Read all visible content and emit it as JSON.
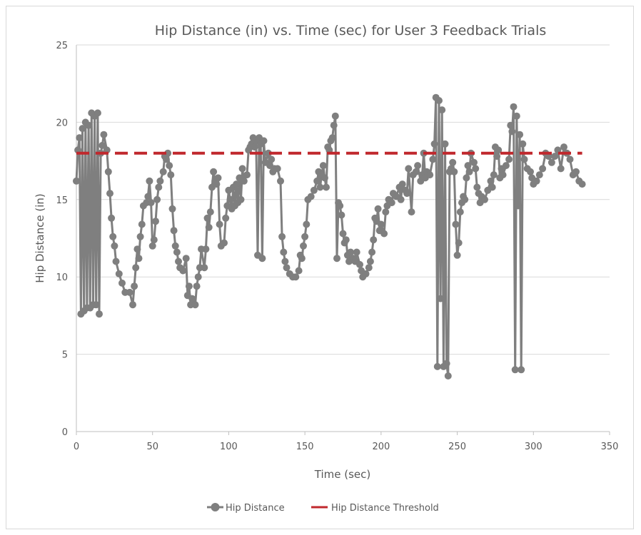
{
  "chart_data": {
    "type": "line",
    "title": "Hip Distance (in) vs. Time (sec) for User 3 Feedback Trials",
    "xlabel": "Time (sec)",
    "ylabel": "Hip Distance (in)",
    "xlim": [
      0,
      350
    ],
    "ylim": [
      0,
      25
    ],
    "x_ticks": [
      "0",
      "50",
      "100",
      "150",
      "200",
      "250",
      "300",
      "350"
    ],
    "y_ticks": [
      "0",
      "5",
      "10",
      "15",
      "20",
      "25"
    ],
    "grid": true,
    "legend_position": "bottom",
    "series": [
      {
        "name": "Hip Distance",
        "color": "#7f7f7f",
        "marker": "circle",
        "points": [
          [
            0,
            16.2
          ],
          [
            1,
            18.2
          ],
          [
            2,
            19.0
          ],
          [
            3,
            7.6
          ],
          [
            4,
            19.6
          ],
          [
            5,
            7.8
          ],
          [
            6,
            20.0
          ],
          [
            7,
            8.0
          ],
          [
            8,
            19.8
          ],
          [
            9,
            8.0
          ],
          [
            10,
            20.6
          ],
          [
            11,
            8.2
          ],
          [
            12,
            20.4
          ],
          [
            13,
            8.2
          ],
          [
            14,
            20.6
          ],
          [
            15,
            7.6
          ],
          [
            16,
            18.0
          ],
          [
            17,
            18.5
          ],
          [
            18,
            19.2
          ],
          [
            20,
            18.2
          ],
          [
            21,
            16.8
          ],
          [
            22,
            15.4
          ],
          [
            23,
            13.8
          ],
          [
            24,
            12.6
          ],
          [
            25,
            12.0
          ],
          [
            26,
            11.0
          ],
          [
            28,
            10.2
          ],
          [
            30,
            9.6
          ],
          [
            32,
            9.0
          ],
          [
            35,
            9.0
          ],
          [
            37,
            8.2
          ],
          [
            38,
            9.4
          ],
          [
            39,
            10.6
          ],
          [
            40,
            11.8
          ],
          [
            41,
            11.2
          ],
          [
            42,
            12.6
          ],
          [
            43,
            13.4
          ],
          [
            44,
            14.6
          ],
          [
            46,
            14.8
          ],
          [
            47,
            15.2
          ],
          [
            48,
            16.2
          ],
          [
            49,
            14.8
          ],
          [
            50,
            12.0
          ],
          [
            51,
            12.4
          ],
          [
            52,
            13.6
          ],
          [
            53,
            15.0
          ],
          [
            54,
            15.8
          ],
          [
            55,
            16.2
          ],
          [
            57,
            16.8
          ],
          [
            58,
            17.8
          ],
          [
            59,
            17.6
          ],
          [
            60,
            18.0
          ],
          [
            61,
            17.2
          ],
          [
            62,
            16.6
          ],
          [
            63,
            14.4
          ],
          [
            64,
            13.0
          ],
          [
            65,
            12.0
          ],
          [
            66,
            11.6
          ],
          [
            67,
            11.0
          ],
          [
            68,
            10.6
          ],
          [
            70,
            10.4
          ],
          [
            72,
            11.2
          ],
          [
            73,
            8.8
          ],
          [
            74,
            9.4
          ],
          [
            75,
            8.2
          ],
          [
            76,
            8.6
          ],
          [
            78,
            8.2
          ],
          [
            79,
            9.4
          ],
          [
            80,
            10.0
          ],
          [
            81,
            10.6
          ],
          [
            82,
            11.8
          ],
          [
            84,
            10.6
          ],
          [
            85,
            11.8
          ],
          [
            86,
            13.8
          ],
          [
            87,
            13.2
          ],
          [
            88,
            14.2
          ],
          [
            89,
            15.8
          ],
          [
            90,
            16.8
          ],
          [
            91,
            16.2
          ],
          [
            92,
            16.0
          ],
          [
            93,
            16.4
          ],
          [
            94,
            13.4
          ],
          [
            95,
            12.0
          ],
          [
            97,
            12.2
          ],
          [
            98,
            13.8
          ],
          [
            99,
            14.6
          ],
          [
            100,
            15.6
          ],
          [
            101,
            15.0
          ],
          [
            102,
            14.4
          ],
          [
            103,
            15.8
          ],
          [
            104,
            14.6
          ],
          [
            105,
            16.0
          ],
          [
            106,
            14.8
          ],
          [
            107,
            16.4
          ],
          [
            108,
            15.0
          ],
          [
            109,
            17.0
          ],
          [
            110,
            16.2
          ],
          [
            112,
            16.6
          ],
          [
            113,
            18.2
          ],
          [
            114,
            18.4
          ],
          [
            115,
            18.6
          ],
          [
            116,
            19.0
          ],
          [
            117,
            18.4
          ],
          [
            118,
            18.8
          ],
          [
            119,
            11.4
          ],
          [
            120,
            19.0
          ],
          [
            121,
            18.6
          ],
          [
            122,
            11.2
          ],
          [
            123,
            18.8
          ],
          [
            124,
            17.4
          ],
          [
            126,
            18.0
          ],
          [
            127,
            17.2
          ],
          [
            128,
            17.6
          ],
          [
            129,
            16.8
          ],
          [
            130,
            17.0
          ],
          [
            132,
            17.0
          ],
          [
            134,
            16.2
          ],
          [
            135,
            12.6
          ],
          [
            136,
            11.6
          ],
          [
            137,
            11.0
          ],
          [
            138,
            10.6
          ],
          [
            140,
            10.2
          ],
          [
            142,
            10.0
          ],
          [
            144,
            10.0
          ],
          [
            146,
            10.4
          ],
          [
            147,
            11.4
          ],
          [
            148,
            11.2
          ],
          [
            149,
            12.0
          ],
          [
            150,
            12.6
          ],
          [
            151,
            13.4
          ],
          [
            152,
            15.0
          ],
          [
            154,
            15.2
          ],
          [
            156,
            15.6
          ],
          [
            158,
            16.2
          ],
          [
            159,
            16.8
          ],
          [
            160,
            15.8
          ],
          [
            161,
            16.6
          ],
          [
            162,
            17.2
          ],
          [
            163,
            16.4
          ],
          [
            164,
            15.8
          ],
          [
            165,
            18.4
          ],
          [
            166,
            18.2
          ],
          [
            167,
            18.8
          ],
          [
            168,
            19.0
          ],
          [
            169,
            19.8
          ],
          [
            170,
            20.4
          ],
          [
            171,
            11.2
          ],
          [
            172,
            14.8
          ],
          [
            173,
            14.6
          ],
          [
            174,
            14.0
          ],
          [
            175,
            12.8
          ],
          [
            176,
            12.2
          ],
          [
            177,
            12.4
          ],
          [
            178,
            11.4
          ],
          [
            179,
            11.0
          ],
          [
            180,
            11.6
          ],
          [
            182,
            11.2
          ],
          [
            183,
            11.0
          ],
          [
            184,
            11.6
          ],
          [
            186,
            10.8
          ],
          [
            187,
            10.4
          ],
          [
            188,
            10.0
          ],
          [
            190,
            10.2
          ],
          [
            192,
            10.6
          ],
          [
            193,
            11.0
          ],
          [
            194,
            11.6
          ],
          [
            195,
            12.4
          ],
          [
            196,
            13.8
          ],
          [
            197,
            13.6
          ],
          [
            198,
            14.4
          ],
          [
            199,
            13.0
          ],
          [
            200,
            13.4
          ],
          [
            202,
            12.8
          ],
          [
            203,
            14.2
          ],
          [
            204,
            14.6
          ],
          [
            205,
            15.0
          ],
          [
            207,
            14.8
          ],
          [
            208,
            15.4
          ],
          [
            210,
            15.2
          ],
          [
            212,
            15.8
          ],
          [
            213,
            15.0
          ],
          [
            214,
            16.0
          ],
          [
            216,
            15.6
          ],
          [
            217,
            15.4
          ],
          [
            218,
            17.0
          ],
          [
            220,
            14.2
          ],
          [
            221,
            16.6
          ],
          [
            223,
            16.8
          ],
          [
            224,
            17.2
          ],
          [
            226,
            16.2
          ],
          [
            227,
            16.6
          ],
          [
            228,
            18.0
          ],
          [
            229,
            16.4
          ],
          [
            230,
            16.8
          ],
          [
            232,
            16.6
          ],
          [
            234,
            17.6
          ],
          [
            235,
            18.6
          ],
          [
            236,
            21.6
          ],
          [
            237,
            4.2
          ],
          [
            238,
            21.4
          ],
          [
            239,
            8.6
          ],
          [
            240,
            20.8
          ],
          [
            241,
            4.2
          ],
          [
            242,
            18.6
          ],
          [
            243,
            4.4
          ],
          [
            244,
            3.6
          ],
          [
            245,
            16.8
          ],
          [
            246,
            17.0
          ],
          [
            247,
            17.4
          ],
          [
            248,
            16.8
          ],
          [
            249,
            13.4
          ],
          [
            250,
            11.4
          ],
          [
            251,
            12.2
          ],
          [
            252,
            14.2
          ],
          [
            253,
            14.8
          ],
          [
            254,
            15.2
          ],
          [
            255,
            15.0
          ],
          [
            256,
            16.4
          ],
          [
            257,
            17.2
          ],
          [
            258,
            16.8
          ],
          [
            259,
            18.0
          ],
          [
            261,
            17.4
          ],
          [
            262,
            17.0
          ],
          [
            263,
            15.8
          ],
          [
            264,
            15.4
          ],
          [
            265,
            14.8
          ],
          [
            266,
            15.2
          ],
          [
            268,
            15.0
          ],
          [
            270,
            15.6
          ],
          [
            272,
            16.2
          ],
          [
            273,
            15.8
          ],
          [
            274,
            16.6
          ],
          [
            275,
            18.4
          ],
          [
            276,
            17.8
          ],
          [
            277,
            18.2
          ],
          [
            278,
            16.4
          ],
          [
            279,
            17.0
          ],
          [
            280,
            16.6
          ],
          [
            282,
            17.2
          ],
          [
            284,
            17.6
          ],
          [
            285,
            19.8
          ],
          [
            286,
            19.4
          ],
          [
            287,
            21.0
          ],
          [
            288,
            4.0
          ],
          [
            289,
            20.4
          ],
          [
            290,
            14.6
          ],
          [
            291,
            19.2
          ],
          [
            292,
            4.0
          ],
          [
            293,
            18.6
          ],
          [
            294,
            17.6
          ],
          [
            296,
            17.0
          ],
          [
            298,
            16.8
          ],
          [
            299,
            16.4
          ],
          [
            300,
            16.0
          ],
          [
            301,
            16.2
          ],
          [
            302,
            16.2
          ],
          [
            304,
            16.6
          ],
          [
            306,
            17.0
          ],
          [
            308,
            18.0
          ],
          [
            310,
            17.8
          ],
          [
            312,
            17.4
          ],
          [
            314,
            17.8
          ],
          [
            316,
            18.2
          ],
          [
            318,
            17.0
          ],
          [
            320,
            18.4
          ],
          [
            322,
            18.0
          ],
          [
            324,
            17.6
          ],
          [
            326,
            16.6
          ],
          [
            328,
            16.8
          ],
          [
            330,
            16.2
          ],
          [
            332,
            16.0
          ]
        ]
      },
      {
        "name": "Hip Distance Threshold",
        "color": "#c0282d",
        "dash": "dashed",
        "points": [
          [
            0,
            18
          ],
          [
            332,
            18
          ]
        ]
      }
    ]
  }
}
